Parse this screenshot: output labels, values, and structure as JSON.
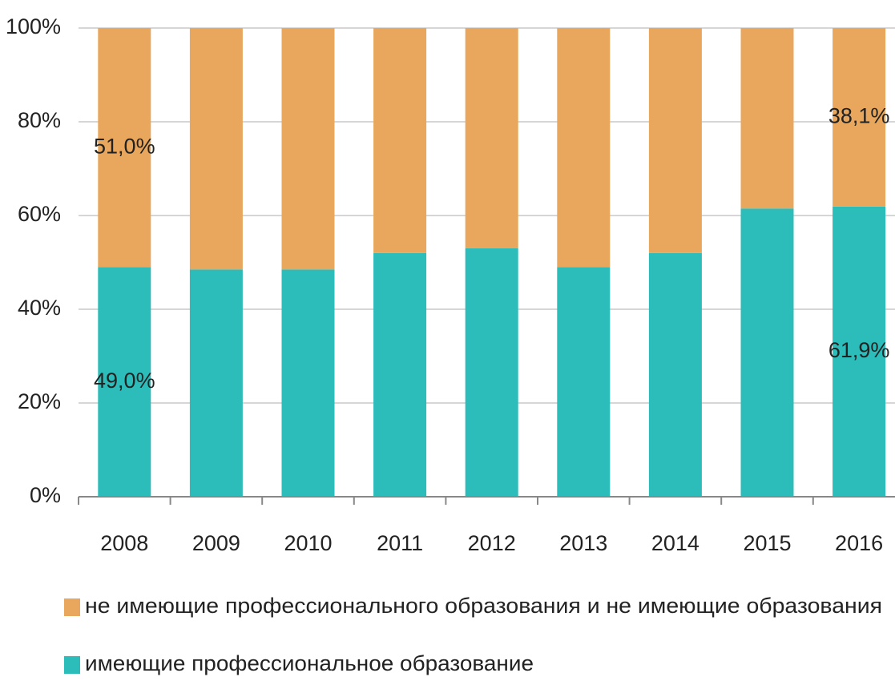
{
  "chart_data": {
    "type": "stacked_bar",
    "categories": [
      "2008",
      "2009",
      "2010",
      "2011",
      "2012",
      "2013",
      "2014",
      "2015",
      "2016"
    ],
    "series": [
      {
        "name": "имеющие профессиональное образование",
        "color": "#2cbcb9",
        "values": [
          49.0,
          48.5,
          48.5,
          52,
          53,
          49,
          52,
          61.5,
          61.9
        ],
        "value_labels": [
          "49,0%",
          null,
          null,
          null,
          null,
          null,
          null,
          null,
          "61,9%"
        ]
      },
      {
        "name": "не имеющие профессионального образования и не имеющие образования",
        "color": "#e8a75c",
        "values": [
          51.0,
          51.5,
          51.5,
          48,
          47,
          51,
          48,
          38.5,
          38.1
        ],
        "value_labels": [
          "51,0%",
          null,
          null,
          null,
          null,
          null,
          null,
          null,
          "38,1%"
        ]
      }
    ],
    "ylim": [
      0,
      100
    ],
    "yticks": [
      {
        "value": 0,
        "label": "0%"
      },
      {
        "value": 20,
        "label": "20%"
      },
      {
        "value": 40,
        "label": "40%"
      },
      {
        "value": 60,
        "label": "60%"
      },
      {
        "value": 80,
        "label": "80%"
      },
      {
        "value": 100,
        "label": "100%"
      }
    ],
    "grid": true
  }
}
